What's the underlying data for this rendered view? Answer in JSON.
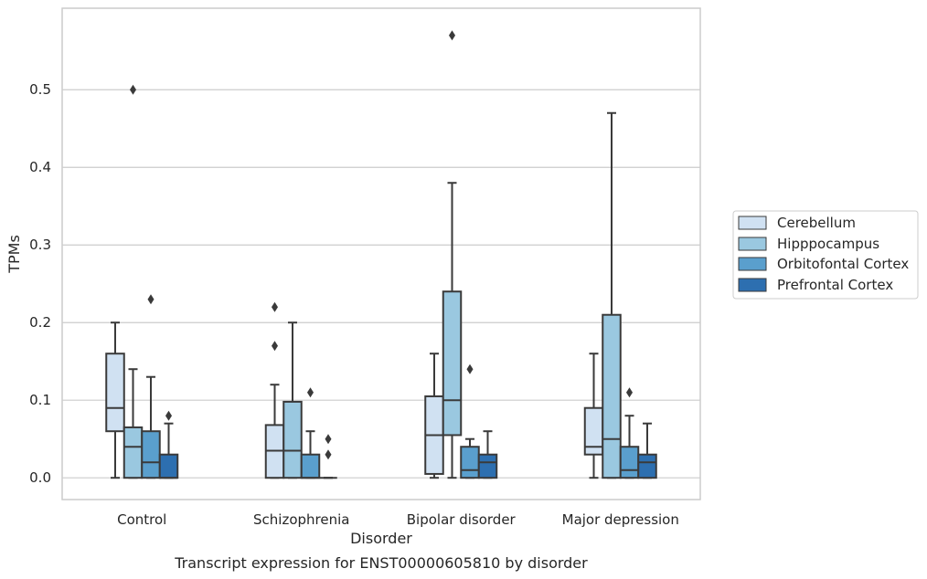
{
  "chart_data": {
    "type": "box",
    "title": "",
    "caption": "Transcript expression for ENST00000605810 by disorder",
    "xlabel": "Disorder",
    "ylabel": "TPMs",
    "ylim": [
      -0.028,
      0.605
    ],
    "yticks": [
      0.0,
      0.1,
      0.2,
      0.3,
      0.4,
      0.5
    ],
    "ytick_labels": [
      "0.0",
      "0.1",
      "0.2",
      "0.3",
      "0.4",
      "0.5"
    ],
    "grid": true,
    "legend_position": "right",
    "categories": [
      "Control",
      "Schizophrenia",
      "Bipolar disorder",
      "Major depression"
    ],
    "series": [
      {
        "name": "Cerebellum",
        "color": "#d0e1f2",
        "boxes": [
          {
            "whisker_low": 0.0,
            "q1": 0.06,
            "median": 0.09,
            "q3": 0.16,
            "whisker_high": 0.2,
            "outliers": []
          },
          {
            "whisker_low": 0.0,
            "q1": 0.0,
            "median": 0.035,
            "q3": 0.068,
            "whisker_high": 0.12,
            "outliers": [
              0.17,
              0.22
            ]
          },
          {
            "whisker_low": 0.0,
            "q1": 0.005,
            "median": 0.055,
            "q3": 0.105,
            "whisker_high": 0.16,
            "outliers": []
          },
          {
            "whisker_low": 0.0,
            "q1": 0.03,
            "median": 0.04,
            "q3": 0.09,
            "whisker_high": 0.16,
            "outliers": []
          }
        ]
      },
      {
        "name": "Hipppocampus",
        "color": "#9ac8e0",
        "boxes": [
          {
            "whisker_low": 0.0,
            "q1": 0.0,
            "median": 0.04,
            "q3": 0.065,
            "whisker_high": 0.14,
            "outliers": [
              0.5
            ]
          },
          {
            "whisker_low": 0.0,
            "q1": 0.0,
            "median": 0.035,
            "q3": 0.098,
            "whisker_high": 0.2,
            "outliers": []
          },
          {
            "whisker_low": 0.0,
            "q1": 0.055,
            "median": 0.1,
            "q3": 0.24,
            "whisker_high": 0.38,
            "outliers": [
              0.57
            ]
          },
          {
            "whisker_low": 0.0,
            "q1": 0.0,
            "median": 0.05,
            "q3": 0.21,
            "whisker_high": 0.47,
            "outliers": []
          }
        ]
      },
      {
        "name": "Orbitofontal Cortex",
        "color": "#5a9fcd",
        "boxes": [
          {
            "whisker_low": 0.0,
            "q1": 0.0,
            "median": 0.02,
            "q3": 0.06,
            "whisker_high": 0.13,
            "outliers": [
              0.23
            ]
          },
          {
            "whisker_low": 0.0,
            "q1": 0.0,
            "median": 0.0,
            "q3": 0.03,
            "whisker_high": 0.06,
            "outliers": [
              0.11
            ]
          },
          {
            "whisker_low": 0.0,
            "q1": 0.0,
            "median": 0.01,
            "q3": 0.04,
            "whisker_high": 0.05,
            "outliers": [
              0.14
            ]
          },
          {
            "whisker_low": 0.0,
            "q1": 0.0,
            "median": 0.01,
            "q3": 0.04,
            "whisker_high": 0.08,
            "outliers": [
              0.11
            ]
          }
        ]
      },
      {
        "name": "Prefrontal Cortex",
        "color": "#2d6fb0",
        "boxes": [
          {
            "whisker_low": 0.0,
            "q1": 0.0,
            "median": 0.0,
            "q3": 0.03,
            "whisker_high": 0.07,
            "outliers": [
              0.08
            ]
          },
          {
            "whisker_low": 0.0,
            "q1": 0.0,
            "median": 0.0,
            "q3": 0.0,
            "whisker_high": 0.0,
            "outliers": [
              0.03,
              0.05
            ]
          },
          {
            "whisker_low": 0.0,
            "q1": 0.0,
            "median": 0.02,
            "q3": 0.03,
            "whisker_high": 0.06,
            "outliers": []
          },
          {
            "whisker_low": 0.0,
            "q1": 0.0,
            "median": 0.02,
            "q3": 0.03,
            "whisker_high": 0.07,
            "outliers": []
          }
        ]
      }
    ],
    "colors": {
      "edge": "#3a3a3a",
      "grid": "#cccccc",
      "frame": "#cccccc"
    }
  }
}
